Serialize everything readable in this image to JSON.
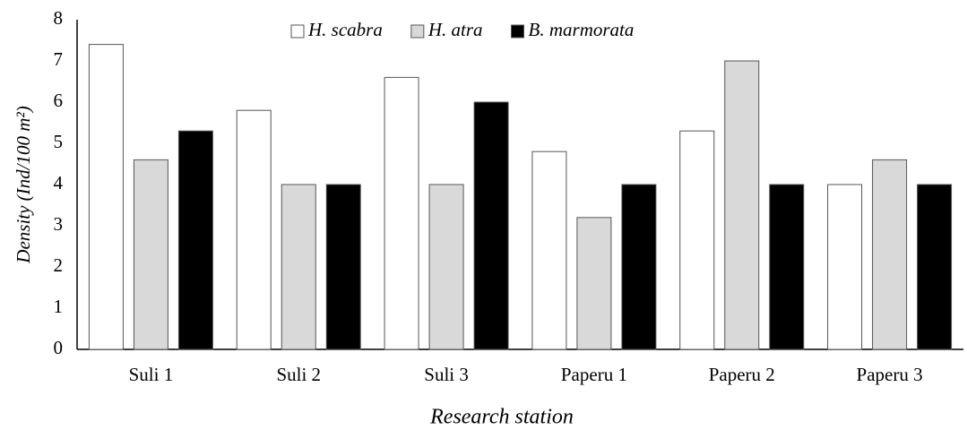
{
  "chart_data": {
    "type": "bar",
    "y_label": "Density (Ind/100 m²)",
    "x_label": "Research station",
    "categories": [
      "Suli 1",
      "Suli 2",
      "Suli 3",
      "Paperu 1",
      "Paperu 2",
      "Paperu 3"
    ],
    "series": [
      {
        "name": "H. scabra",
        "color": "#ffffff",
        "values": [
          7.4,
          5.8,
          6.6,
          4.8,
          5.3,
          4.0
        ]
      },
      {
        "name": "H. atra",
        "color": "#d9d9d9",
        "values": [
          4.6,
          4.0,
          4.0,
          3.2,
          7.0,
          4.6
        ]
      },
      {
        "name": "B. marmorata",
        "color": "#000000",
        "values": [
          5.3,
          4.0,
          6.0,
          4.0,
          4.0,
          4.0
        ]
      }
    ],
    "ylim": [
      0,
      8
    ],
    "yticks": [
      0,
      1,
      2,
      3,
      4,
      5,
      6,
      7,
      8
    ],
    "legend": "top",
    "grid": false
  }
}
